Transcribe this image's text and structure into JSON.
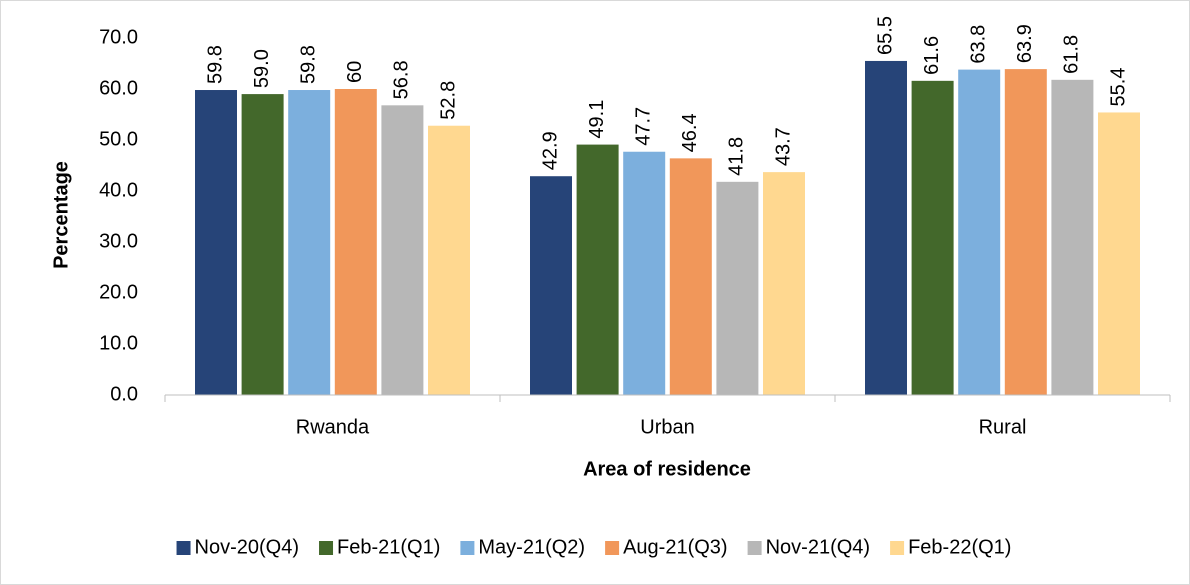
{
  "chart_data": {
    "type": "bar",
    "x_label": "Area of residence",
    "y_label": "Percentage",
    "categories": [
      "Rwanda",
      "Urban",
      "Rural"
    ],
    "series": [
      {
        "name": "Nov-20(Q4)",
        "color": "#264478",
        "values": [
          59.8,
          42.9,
          65.5
        ]
      },
      {
        "name": "Feb-21(Q1)",
        "color": "#43682b",
        "values": [
          59.0,
          49.1,
          61.6
        ],
        "value_labels": [
          "59.0",
          "49.1",
          "61.6"
        ]
      },
      {
        "name": "May-21(Q2)",
        "color": "#7cafdd",
        "values": [
          59.8,
          47.7,
          63.8
        ]
      },
      {
        "name": "Aug-21(Q3)",
        "color": "#f1975a",
        "values": [
          60,
          46.4,
          63.9
        ]
      },
      {
        "name": "Nov-21(Q4)",
        "color": "#b7b7b7",
        "values": [
          56.8,
          41.8,
          61.8
        ]
      },
      {
        "name": "Feb-22(Q1)",
        "color": "#ffd890",
        "values": [
          52.8,
          43.7,
          55.4
        ]
      }
    ],
    "ylim": [
      0,
      70
    ],
    "yticks": [
      {
        "value": 0,
        "label": "0.0"
      },
      {
        "value": 10,
        "label": "10.0"
      },
      {
        "value": 20,
        "label": "20.0"
      },
      {
        "value": 30,
        "label": "30.0"
      },
      {
        "value": 40,
        "label": "40.0"
      },
      {
        "value": 50,
        "label": "50.0"
      },
      {
        "value": 60,
        "label": "60.0"
      },
      {
        "value": 70,
        "label": "70.0"
      }
    ],
    "grid": false,
    "legend": "bottom"
  }
}
